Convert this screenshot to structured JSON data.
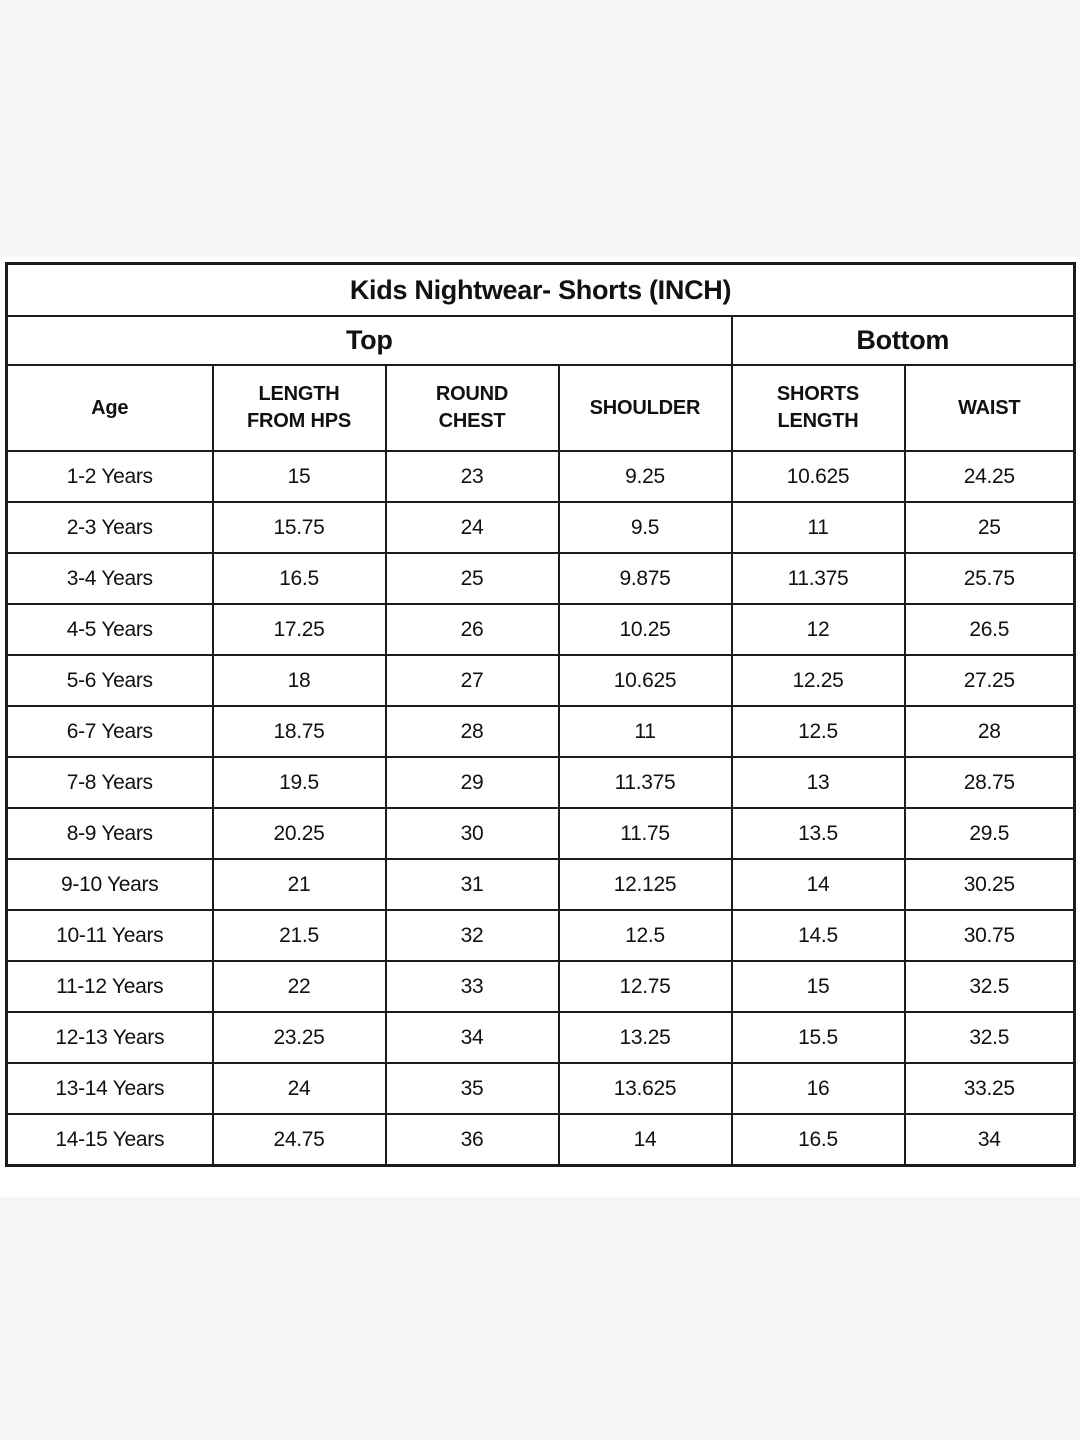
{
  "page": {
    "background_color": "#f5f6f6",
    "panel_color": "#ffffff",
    "border_color": "#1c1c1c",
    "text_color": "#111111"
  },
  "chart_data": {
    "type": "table",
    "title": "Kids Nightwear- Shorts (INCH)",
    "unit": "INCH",
    "group_headers": [
      {
        "label": "Top",
        "colspan": 4
      },
      {
        "label": "Bottom",
        "colspan": 2
      }
    ],
    "columns": [
      "Age",
      "LENGTH\nFROM HPS",
      "ROUND\nCHEST",
      "SHOULDER",
      "SHORTS\nLENGTH",
      "WAIST"
    ],
    "rows": [
      [
        "1-2 Years",
        "15",
        "23",
        "9.25",
        "10.625",
        "24.25"
      ],
      [
        "2-3 Years",
        "15.75",
        "24",
        "9.5",
        "11",
        "25"
      ],
      [
        "3-4 Years",
        "16.5",
        "25",
        "9.875",
        "11.375",
        "25.75"
      ],
      [
        "4-5 Years",
        "17.25",
        "26",
        "10.25",
        "12",
        "26.5"
      ],
      [
        "5-6 Years",
        "18",
        "27",
        "10.625",
        "12.25",
        "27.25"
      ],
      [
        "6-7 Years",
        "18.75",
        "28",
        "11",
        "12.5",
        "28"
      ],
      [
        "7-8 Years",
        "19.5",
        "29",
        "11.375",
        "13",
        "28.75"
      ],
      [
        "8-9 Years",
        "20.25",
        "30",
        "11.75",
        "13.5",
        "29.5"
      ],
      [
        "9-10 Years",
        "21",
        "31",
        "12.125",
        "14",
        "30.25"
      ],
      [
        "10-11 Years",
        "21.5",
        "32",
        "12.5",
        "14.5",
        "30.75"
      ],
      [
        "11-12 Years",
        "22",
        "33",
        "12.75",
        "15",
        "32.5"
      ],
      [
        "12-13 Years",
        "23.25",
        "34",
        "13.25",
        "15.5",
        "32.5"
      ],
      [
        "13-14 Years",
        "24",
        "35",
        "13.625",
        "16",
        "33.25"
      ],
      [
        "14-15 Years",
        "24.75",
        "36",
        "14",
        "16.5",
        "34"
      ]
    ]
  }
}
